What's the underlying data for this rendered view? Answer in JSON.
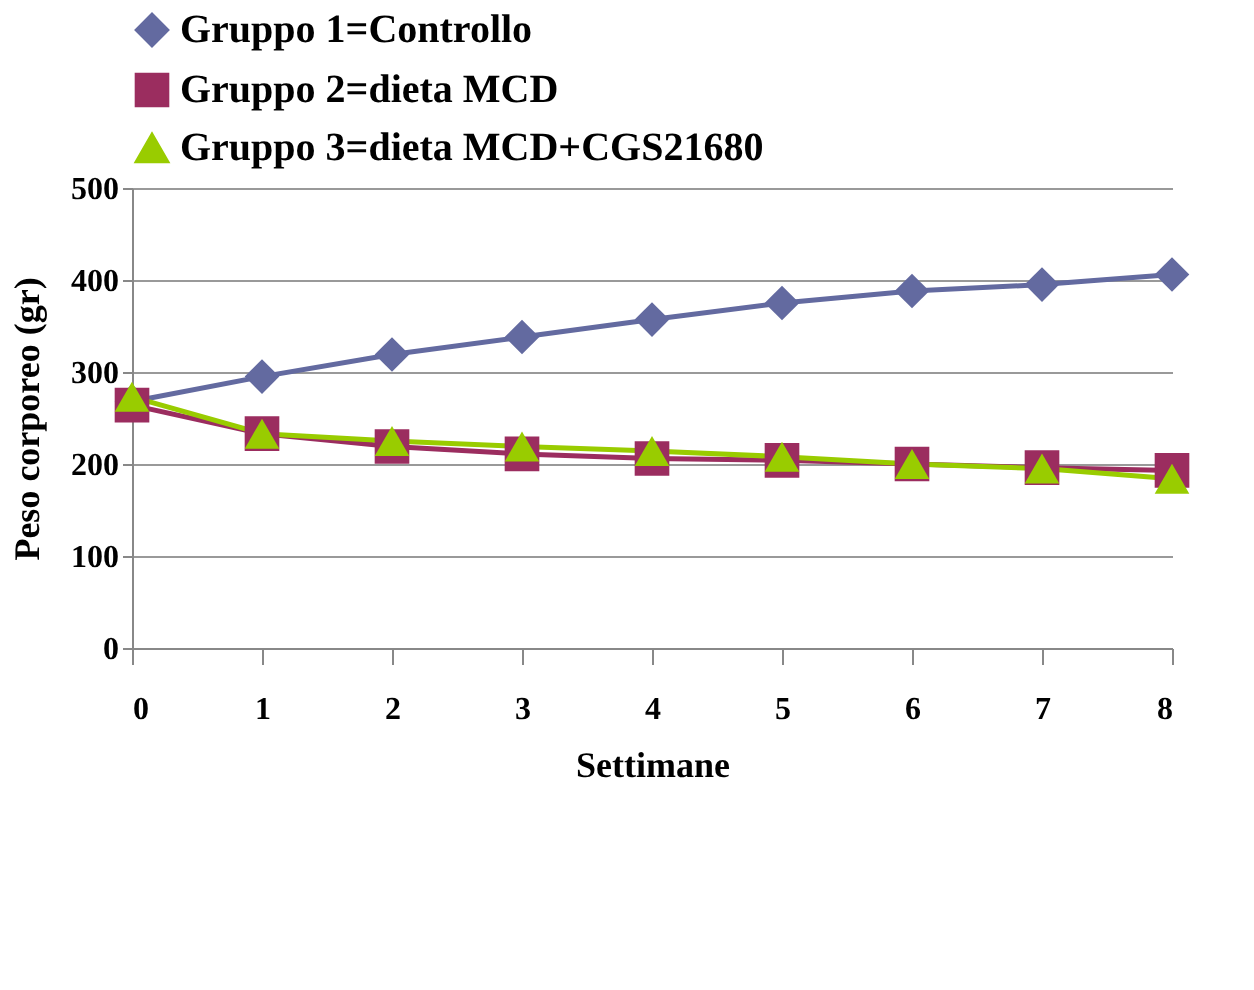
{
  "chart_data": {
    "type": "line",
    "xlabel": "Settimane",
    "ylabel": "Peso corporeo (gr)",
    "x": [
      0,
      1,
      2,
      3,
      4,
      5,
      6,
      7,
      8
    ],
    "series": [
      {
        "name": "Gruppo 1=Controllo",
        "color": "#636aa0",
        "marker": "diamond",
        "values": [
          268,
          295,
          319,
          338,
          357,
          375,
          388,
          395,
          406
        ]
      },
      {
        "name": "Gruppo 2=dieta MCD",
        "color": "#9b2d5f",
        "marker": "square",
        "values": [
          264,
          233,
          219,
          211,
          206,
          204,
          200,
          196,
          193
        ]
      },
      {
        "name": "Gruppo 3=dieta MCD+CGS21680",
        "color": "#99cc00",
        "marker": "triangle",
        "values": [
          273,
          233,
          225,
          219,
          214,
          208,
          200,
          195,
          184
        ]
      }
    ],
    "xlim": [
      0,
      8
    ],
    "xticks": [
      0,
      1,
      2,
      3,
      4,
      5,
      6,
      7,
      8
    ],
    "ylim": [
      0,
      500
    ],
    "yticks": [
      0,
      100,
      200,
      300,
      400,
      500
    ],
    "grid": "y",
    "legend": "top",
    "line_style": "solid"
  }
}
